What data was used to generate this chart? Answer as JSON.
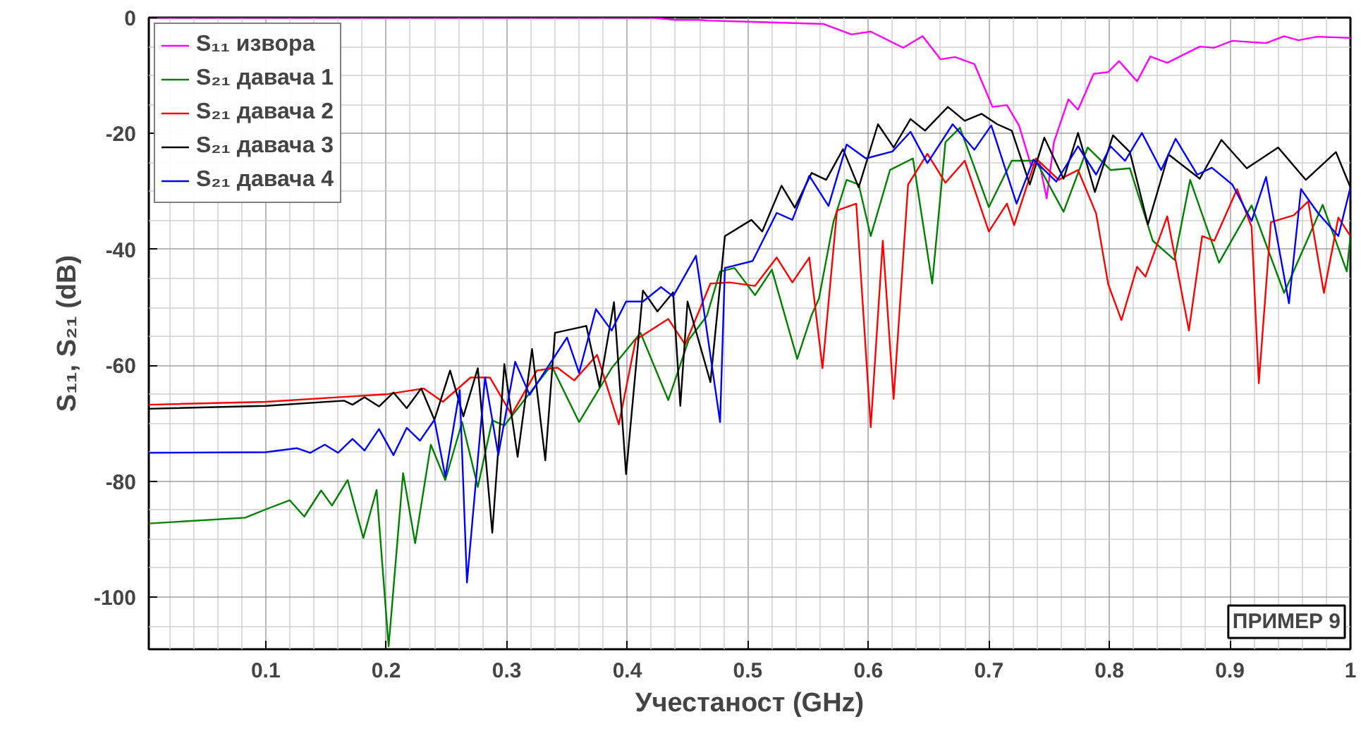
{
  "chart_data": {
    "type": "line",
    "xlabel": "Учестаност (GHz)",
    "ylabel": "S₁₁, S₂₁ (dB)",
    "xlim": [
      0.003,
      1
    ],
    "ylim": [
      -109,
      0
    ],
    "xticks": [
      0.1,
      0.2,
      0.3,
      0.4,
      0.5,
      0.6,
      0.7,
      0.8,
      0.9,
      1
    ],
    "yticks": [
      -100,
      -80,
      -60,
      -40,
      -20,
      0
    ],
    "grid": true,
    "legend": "top left",
    "line_style": "solid",
    "marker": "none",
    "annotations": [
      "ПРИМЕР 9"
    ],
    "series": [
      {
        "name": "S₁₁ извора",
        "color": "#ff00ff",
        "x": [
          0.003,
          0.1,
          0.2,
          0.3,
          0.42,
          0.44,
          0.46,
          0.466,
          0.563,
          0.586,
          0.602,
          0.629,
          0.645,
          0.66,
          0.672,
          0.688,
          0.703,
          0.715,
          0.725,
          0.735,
          0.742,
          0.748,
          0.754,
          0.766,
          0.774,
          0.787,
          0.799,
          0.808,
          0.823,
          0.834,
          0.848,
          0.875,
          0.887,
          0.902,
          0.93,
          0.945,
          0.957,
          0.972,
          1.0
        ],
        "values": [
          0,
          0,
          0,
          0,
          0,
          -0.4,
          -0.4,
          -0.5,
          -1.1,
          -2.9,
          -2.4,
          -5.2,
          -3.2,
          -7.2,
          -6.8,
          -8,
          -15.4,
          -15.1,
          -18.6,
          -25.5,
          -25.1,
          -31.2,
          -21.5,
          -14.1,
          -15.9,
          -9.7,
          -9.4,
          -7.5,
          -11.0,
          -6.7,
          -7.8,
          -5.0,
          -5.2,
          -4.0,
          -4.4,
          -3.2,
          -3.9,
          -3.3,
          -3.5
        ]
      },
      {
        "name": "S₂₁ давача 1",
        "color": "#008000",
        "x": [
          0.003,
          0.083,
          0.102,
          0.12,
          0.132,
          0.146,
          0.155,
          0.168,
          0.181,
          0.192,
          0.202,
          0.214,
          0.224,
          0.237,
          0.249,
          0.263,
          0.276,
          0.288,
          0.298,
          0.337,
          0.36,
          0.387,
          0.411,
          0.434,
          0.451,
          0.466,
          0.477,
          0.489,
          0.506,
          0.52,
          0.541,
          0.553,
          0.559,
          0.571,
          0.582,
          0.592,
          0.602,
          0.618,
          0.637,
          0.653,
          0.664,
          0.676,
          0.7,
          0.719,
          0.739,
          0.762,
          0.782,
          0.801,
          0.817,
          0.836,
          0.854,
          0.867,
          0.891,
          0.918,
          0.945,
          0.977,
          0.997,
          1.0
        ],
        "values": [
          -87.3,
          -86.3,
          -84.7,
          -83.3,
          -86.1,
          -81.6,
          -84.2,
          -79.8,
          -89.8,
          -81.5,
          -108.5,
          -78.6,
          -90.7,
          -73.7,
          -79.8,
          -69.8,
          -81.0,
          -69.5,
          -70.4,
          -60,
          -69.8,
          -60.5,
          -54.4,
          -66.0,
          -55.6,
          -51.5,
          -43.8,
          -43.2,
          -47.9,
          -43.5,
          -58.9,
          -51.3,
          -48.5,
          -35.3,
          -28.0,
          -28.8,
          -37.7,
          -26.3,
          -24.3,
          -45.9,
          -21.5,
          -19.0,
          -32.7,
          -24.7,
          -24.7,
          -33.5,
          -22.4,
          -26.3,
          -26.0,
          -38.5,
          -41.8,
          -28.0,
          -42.3,
          -32.4,
          -47.5,
          -32.3,
          -43.8,
          -37.7
        ]
      },
      {
        "name": "S₂₁ давача 2",
        "color": "#ff0000",
        "x": [
          0.003,
          0.1,
          0.2,
          0.231,
          0.247,
          0.27,
          0.286,
          0.304,
          0.325,
          0.342,
          0.356,
          0.375,
          0.393,
          0.407,
          0.434,
          0.448,
          0.469,
          0.485,
          0.506,
          0.524,
          0.537,
          0.551,
          0.562,
          0.574,
          0.59,
          0.602,
          0.612,
          0.621,
          0.633,
          0.649,
          0.664,
          0.68,
          0.7,
          0.715,
          0.721,
          0.739,
          0.758,
          0.774,
          0.789,
          0.799,
          0.81,
          0.823,
          0.83,
          0.848,
          0.866,
          0.877,
          0.887,
          0.906,
          0.918,
          0.924,
          0.934,
          0.953,
          0.965,
          0.978,
          0.99,
          1.0
        ],
        "values": [
          -66.8,
          -66.3,
          -65,
          -64,
          -66.3,
          -62.1,
          -62.1,
          -68.5,
          -60.9,
          -60.4,
          -62.6,
          -58.2,
          -70.2,
          -55.6,
          -52.0,
          -56.4,
          -45.9,
          -45.7,
          -46.3,
          -41.4,
          -45.7,
          -41.4,
          -60.5,
          -33.3,
          -32.1,
          -70.7,
          -38.5,
          -65.8,
          -28.8,
          -23.5,
          -28.5,
          -24.7,
          -36.9,
          -32.1,
          -35.8,
          -24.3,
          -28.0,
          -26.3,
          -33.8,
          -46,
          -52.2,
          -43,
          -44.7,
          -34.3,
          -54,
          -37.7,
          -38.5,
          -29.6,
          -36.1,
          -63.1,
          -35.3,
          -34.1,
          -31.7,
          -47.5,
          -34.5,
          -37.7
        ]
      },
      {
        "name": "S₂₁ давача 3",
        "color": "#000000",
        "x": [
          0.003,
          0.1,
          0.165,
          0.172,
          0.182,
          0.194,
          0.206,
          0.217,
          0.229,
          0.24,
          0.253,
          0.264,
          0.276,
          0.288,
          0.298,
          0.309,
          0.321,
          0.332,
          0.34,
          0.366,
          0.377,
          0.389,
          0.399,
          0.413,
          0.425,
          0.438,
          0.444,
          0.45,
          0.469,
          0.481,
          0.503,
          0.512,
          0.528,
          0.539,
          0.553,
          0.565,
          0.579,
          0.592,
          0.608,
          0.621,
          0.635,
          0.647,
          0.666,
          0.68,
          0.694,
          0.707,
          0.719,
          0.734,
          0.746,
          0.762,
          0.774,
          0.788,
          0.803,
          0.817,
          0.832,
          0.849,
          0.875,
          0.893,
          0.914,
          0.94,
          0.963,
          0.988,
          1.0
        ],
        "values": [
          -67.5,
          -67,
          -66.1,
          -66.8,
          -65.5,
          -67.1,
          -64.7,
          -67.4,
          -64,
          -69.4,
          -60.9,
          -68.8,
          -60.5,
          -88.9,
          -59.8,
          -75.8,
          -57.2,
          -76.4,
          -54.4,
          -53.2,
          -63.7,
          -49.1,
          -78.8,
          -47.1,
          -50.7,
          -47.4,
          -67,
          -49.0,
          -62.9,
          -37.7,
          -34.9,
          -36.9,
          -29,
          -32.8,
          -26.8,
          -28,
          -22.7,
          -29.3,
          -18.4,
          -22.4,
          -17.5,
          -19.5,
          -15.4,
          -17.8,
          -16.6,
          -18.4,
          -19.5,
          -28.8,
          -20.7,
          -27.8,
          -19.9,
          -30.1,
          -20.3,
          -23.2,
          -35.7,
          -23.6,
          -27.8,
          -21.1,
          -26.0,
          -22.4,
          -28.0,
          -23.2,
          -29.3
        ]
      },
      {
        "name": "S₂₁ давача 4",
        "color": "#0000ff",
        "x": [
          0.003,
          0.1,
          0.126,
          0.137,
          0.149,
          0.16,
          0.172,
          0.182,
          0.194,
          0.206,
          0.217,
          0.228,
          0.24,
          0.249,
          0.261,
          0.267,
          0.282,
          0.293,
          0.307,
          0.319,
          0.35,
          0.36,
          0.374,
          0.387,
          0.399,
          0.413,
          0.428,
          0.438,
          0.457,
          0.477,
          0.481,
          0.504,
          0.524,
          0.537,
          0.551,
          0.567,
          0.582,
          0.598,
          0.62,
          0.635,
          0.649,
          0.67,
          0.688,
          0.702,
          0.723,
          0.737,
          0.756,
          0.774,
          0.789,
          0.801,
          0.813,
          0.827,
          0.843,
          0.855,
          0.873,
          0.885,
          0.902,
          0.918,
          0.93,
          0.949,
          0.959,
          0.973,
          0.99,
          1.0
        ],
        "values": [
          -75.1,
          -75,
          -74.3,
          -75.1,
          -73.7,
          -75.1,
          -72.7,
          -74.7,
          -71.0,
          -75.5,
          -70.8,
          -73.0,
          -69.4,
          -79.2,
          -64.3,
          -97.5,
          -62.1,
          -75.5,
          -59.4,
          -65.1,
          -55.2,
          -61.3,
          -50.3,
          -54.0,
          -49.0,
          -49.0,
          -46.5,
          -48.1,
          -41.1,
          -69.8,
          -43.2,
          -42.0,
          -33.7,
          -34.9,
          -27.3,
          -32.5,
          -21.9,
          -24.3,
          -23.1,
          -19.7,
          -25.1,
          -18.4,
          -22.8,
          -18.6,
          -32.1,
          -24.5,
          -28.3,
          -22.2,
          -27.1,
          -22.2,
          -24.7,
          -19.9,
          -26.3,
          -20.9,
          -27.1,
          -25.9,
          -28.8,
          -35.1,
          -27.5,
          -49.3,
          -29.6,
          -33.7,
          -37.7,
          -29.3
        ]
      }
    ]
  }
}
